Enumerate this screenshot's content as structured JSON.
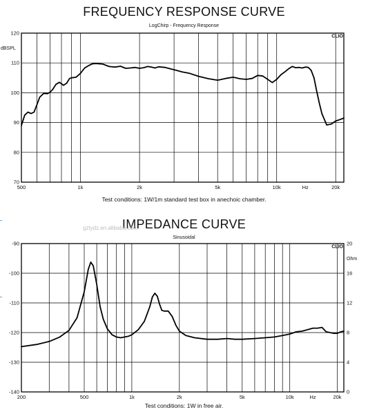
{
  "page": {
    "freq_title": "FREQUENCY RESPONSE  CURVE",
    "freq_subtitle": "LogChirp - Frequency Response",
    "freq_caption": "Test conditions: 1W/1m standard test box in anechoic chamber.",
    "imp_title": "IMPEDANCE CURVE",
    "imp_subtitle": "Sinusoidal",
    "imp_caption": "Test conditions: 1W in free air.",
    "brand": "CLIO",
    "watermark": "gztydz.en.alibaba.com"
  },
  "colors": {
    "curve": "#000000",
    "grid": "#000000",
    "frame": "#000000"
  },
  "chart_data": [
    {
      "type": "line",
      "title": "FREQUENCY RESPONSE  CURVE",
      "subtitle": "LogChirp - Frequency Response",
      "xscale": "log",
      "xlim": [
        500,
        22000
      ],
      "ylim": [
        70,
        120
      ],
      "ylabel": "dBSPL",
      "x_tick_labels": [
        {
          "x": 500,
          "label": "500"
        },
        {
          "x": 1000,
          "label": "1k"
        },
        {
          "x": 2000,
          "label": "2k"
        },
        {
          "x": 5000,
          "label": "5k"
        },
        {
          "x": 10000,
          "label": "10k"
        },
        {
          "x": 14000,
          "label": "Hz"
        },
        {
          "x": 20000,
          "label": "20k"
        }
      ],
      "x_gridlines": [
        500,
        600,
        700,
        800,
        900,
        1000,
        2000,
        3000,
        4000,
        5000,
        6000,
        7000,
        8000,
        9000,
        10000,
        20000
      ],
      "y_ticks": [
        70,
        80,
        90,
        100,
        110,
        120
      ],
      "grid": true,
      "series": [
        {
          "x": [
            500,
            520,
            540,
            560,
            580,
            600,
            620,
            650,
            680,
            700,
            720,
            750,
            780,
            800,
            820,
            850,
            880,
            900,
            950,
            1000,
            1050,
            1100,
            1150,
            1200,
            1300,
            1400,
            1500,
            1600,
            1700,
            1800,
            1900,
            2000,
            2100,
            2200,
            2300,
            2400,
            2500,
            2700,
            3000,
            3300,
            3600,
            4000,
            4500,
            5000,
            5500,
            6000,
            6500,
            7000,
            7500,
            8000,
            8500,
            9000,
            9500,
            10000,
            10500,
            11000,
            11500,
            12000,
            12500,
            13000,
            13500,
            14000,
            14500,
            15000,
            15500,
            16000,
            16500,
            17000,
            18000,
            19000,
            20000,
            21000,
            22000
          ],
          "y": [
            89,
            92.5,
            93.5,
            93,
            93.5,
            96,
            98.5,
            99.8,
            99.7,
            100.2,
            101,
            102.8,
            103.5,
            103,
            102.5,
            103.2,
            104.8,
            105,
            105.2,
            106.5,
            108.3,
            109.1,
            109.7,
            109.8,
            109.6,
            108.8,
            108.6,
            108.9,
            108.2,
            108.3,
            108.5,
            108.2,
            108.4,
            108.8,
            108.6,
            108.3,
            108.7,
            108.5,
            107.7,
            107,
            106.5,
            105.5,
            104.7,
            104.2,
            104.8,
            105.2,
            104.7,
            104.5,
            104.8,
            105.8,
            105.6,
            104.5,
            103.4,
            104.5,
            106,
            107,
            108,
            108.8,
            108.4,
            108.5,
            108.3,
            108.6,
            108.5,
            107.5,
            105,
            100.5,
            96.5,
            93,
            89.2,
            89.5,
            90.5,
            91,
            91.5
          ]
        }
      ]
    },
    {
      "type": "line",
      "title": "IMPEDANCE CURVE",
      "subtitle": "Sinusoidal",
      "xscale": "log",
      "xlim": [
        200,
        22000
      ],
      "ylim": [
        0,
        20
      ],
      "ylabel": "Ohm",
      "left_axis_ticks": [
        -90,
        -100,
        -110,
        -120,
        -130,
        -140
      ],
      "right_axis_ticks": [
        20,
        16,
        12,
        8,
        4,
        0
      ],
      "x_tick_labels": [
        {
          "x": 200,
          "label": "200"
        },
        {
          "x": 500,
          "label": "500"
        },
        {
          "x": 1000,
          "label": "1k"
        },
        {
          "x": 2000,
          "label": "2k"
        },
        {
          "x": 5000,
          "label": "5k"
        },
        {
          "x": 10000,
          "label": "10k"
        },
        {
          "x": 14000,
          "label": "Hz"
        },
        {
          "x": 20000,
          "label": "20k"
        }
      ],
      "x_gridlines": [
        200,
        300,
        400,
        500,
        600,
        700,
        800,
        900,
        1000,
        2000,
        3000,
        4000,
        5000,
        6000,
        7000,
        8000,
        9000,
        10000,
        20000
      ],
      "grid": true,
      "series": [
        {
          "x": [
            200,
            250,
            300,
            350,
            400,
            450,
            500,
            530,
            550,
            570,
            600,
            630,
            660,
            700,
            750,
            800,
            850,
            900,
            950,
            1000,
            1100,
            1200,
            1300,
            1350,
            1400,
            1450,
            1500,
            1550,
            1600,
            1700,
            1800,
            1900,
            2000,
            2200,
            2500,
            3000,
            3500,
            4000,
            4500,
            5000,
            6000,
            7000,
            8000,
            9000,
            10000,
            11000,
            12000,
            13000,
            14000,
            15000,
            16000,
            17000,
            18000,
            19000,
            20000,
            21000,
            22000
          ],
          "y": [
            6.1,
            6.4,
            6.8,
            7.4,
            8.3,
            10,
            13.5,
            16.5,
            17.5,
            17,
            14.5,
            11.5,
            9.8,
            8.5,
            7.7,
            7.4,
            7.3,
            7.4,
            7.5,
            7.7,
            8.4,
            9.5,
            11.5,
            12.8,
            13.3,
            12.9,
            11.8,
            11,
            10.9,
            10.9,
            10.2,
            9,
            8.2,
            7.6,
            7.3,
            7.1,
            7.1,
            7.2,
            7.1,
            7.1,
            7.2,
            7.3,
            7.4,
            7.6,
            7.8,
            8.1,
            8.2,
            8.4,
            8.6,
            8.6,
            8.7,
            8.1,
            8,
            7.9,
            7.9,
            8.1,
            8.2
          ]
        }
      ]
    }
  ]
}
